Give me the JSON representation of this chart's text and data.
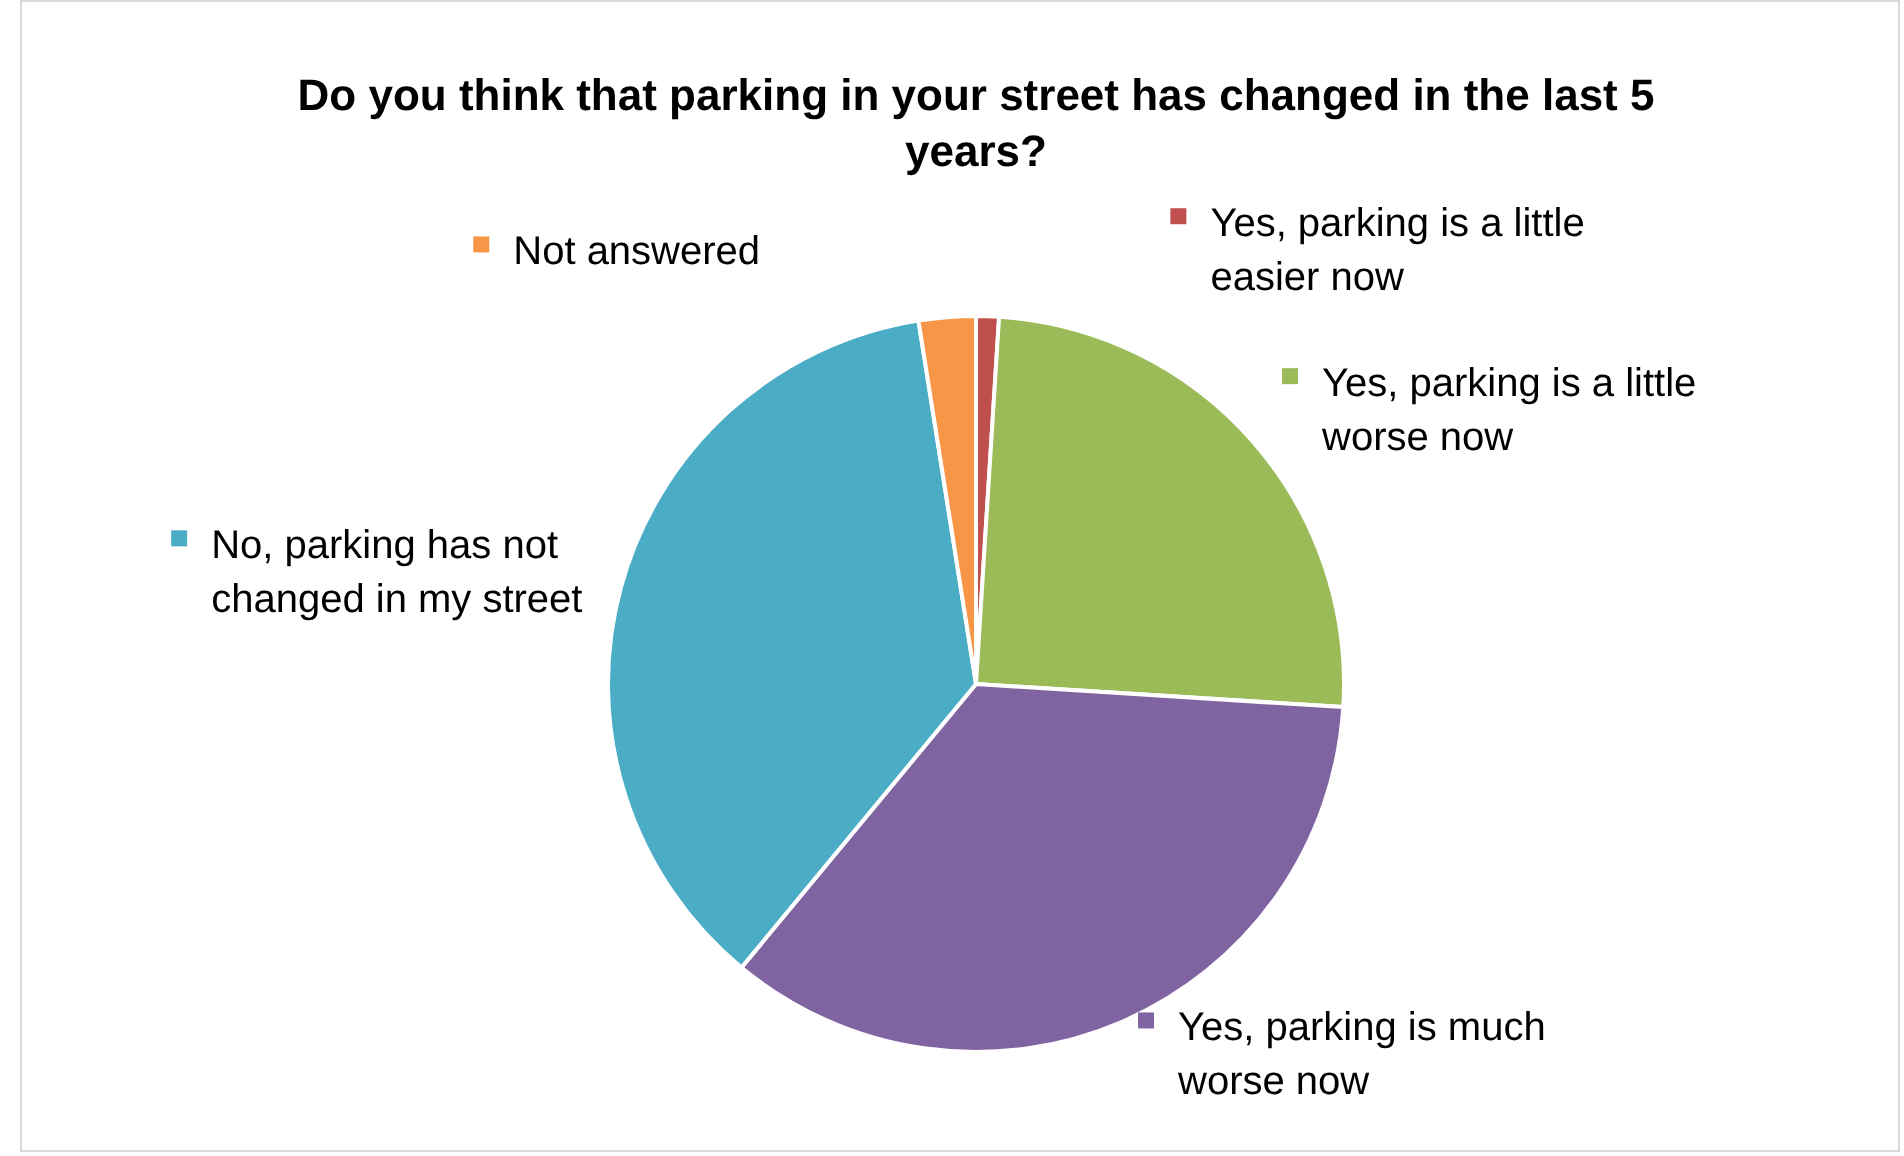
{
  "chart_data": {
    "type": "pie",
    "title": "Do you think that parking in your street has changed in the last 5 years?",
    "categories": [
      "Yes, parking is a little easier now",
      "Yes, parking is a little worse now",
      "Yes, parking is much worse now",
      "No, parking has not changed in my street",
      "Not answered"
    ],
    "values": [
      1,
      25,
      35,
      36.5,
      2.5
    ],
    "colors": [
      "#c0504d",
      "#9bbb59",
      "#8064a2",
      "#4bacc6",
      "#f79646"
    ],
    "legend": "top left"
  }
}
